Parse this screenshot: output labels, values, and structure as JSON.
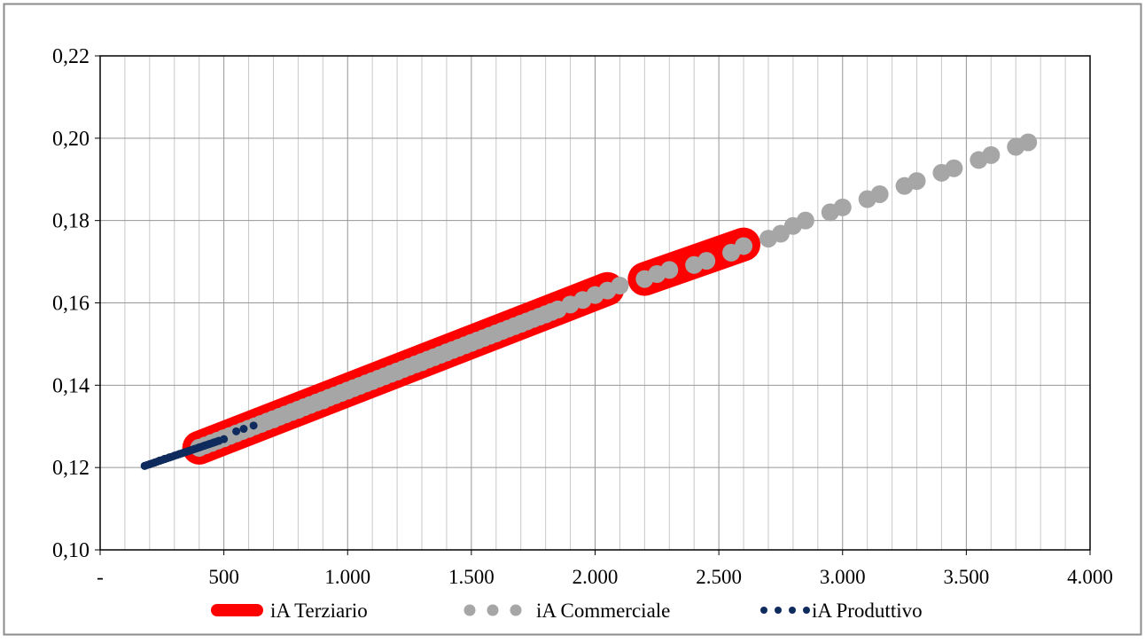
{
  "chart_data": {
    "type": "scatter",
    "title": "",
    "xlabel": "",
    "ylabel": "",
    "xlim": [
      0,
      4000
    ],
    "ylim": [
      0.1,
      0.22
    ],
    "x_ticks": [
      0,
      500,
      1000,
      1500,
      2000,
      2500,
      3000,
      3500,
      4000
    ],
    "x_tick_labels": [
      "-",
      "500",
      "1.000",
      "1.500",
      "2.000",
      "2.500",
      "3.000",
      "3.500",
      "4.000"
    ],
    "y_ticks": [
      0.1,
      0.12,
      0.14,
      0.16,
      0.18,
      0.2,
      0.22
    ],
    "y_tick_labels": [
      "0,10",
      "0,12",
      "0,14",
      "0,16",
      "0,18",
      "0,20",
      "0,22"
    ],
    "x_minor_step": 100,
    "grid": true,
    "legend_position": "bottom",
    "series": [
      {
        "name": "iA Terziario",
        "color": "#ff0000",
        "style": "thick-line",
        "segments": [
          [
            [
              400,
              0.1248
            ],
            [
              2050,
              0.1634
            ]
          ],
          [
            [
              2200,
              0.1658
            ],
            [
              2600,
              0.1742
            ]
          ]
        ]
      },
      {
        "name": "iA Commerciale",
        "color": "#a6a6a6",
        "style": "large-dots",
        "x": [
          400,
          500,
          600,
          700,
          800,
          900,
          1000,
          1100,
          1200,
          1300,
          1400,
          1500,
          1600,
          1700,
          1800,
          1850,
          1900,
          1950,
          2000,
          2050,
          2100,
          2200,
          2250,
          2300,
          2400,
          2450,
          2550,
          2600,
          2700,
          2750,
          2800,
          2850,
          2950,
          3000,
          3100,
          3150,
          3250,
          3300,
          3400,
          3450,
          3550,
          3600,
          3700,
          3750
        ],
        "y": [
          0.1248,
          0.1271,
          0.1294,
          0.1317,
          0.134,
          0.1363,
          0.1387,
          0.141,
          0.1433,
          0.1456,
          0.148,
          0.1503,
          0.1526,
          0.1549,
          0.1572,
          0.1584,
          0.1596,
          0.1607,
          0.1619,
          0.163,
          0.1642,
          0.1658,
          0.167,
          0.168,
          0.1692,
          0.1702,
          0.1722,
          0.1738,
          0.1756,
          0.1768,
          0.1787,
          0.18,
          0.182,
          0.1832,
          0.1852,
          0.1864,
          0.1884,
          0.1896,
          0.1916,
          0.1927,
          0.1947,
          0.1959,
          0.1979,
          0.199
        ]
      },
      {
        "name": "iA Produttivo",
        "color": "#0f2a5c",
        "style": "small-dots",
        "x": [
          180,
          200,
          220,
          240,
          260,
          280,
          300,
          320,
          340,
          360,
          380,
          400,
          420,
          440,
          460,
          480,
          500,
          550,
          580,
          620
        ],
        "y": [
          0.1204,
          0.1208,
          0.1212,
          0.1217,
          0.1221,
          0.1225,
          0.1229,
          0.1233,
          0.1237,
          0.1241,
          0.1245,
          0.1249,
          0.1253,
          0.1257,
          0.1261,
          0.1265,
          0.1269,
          0.1288,
          0.1294,
          0.1302
        ]
      }
    ]
  }
}
